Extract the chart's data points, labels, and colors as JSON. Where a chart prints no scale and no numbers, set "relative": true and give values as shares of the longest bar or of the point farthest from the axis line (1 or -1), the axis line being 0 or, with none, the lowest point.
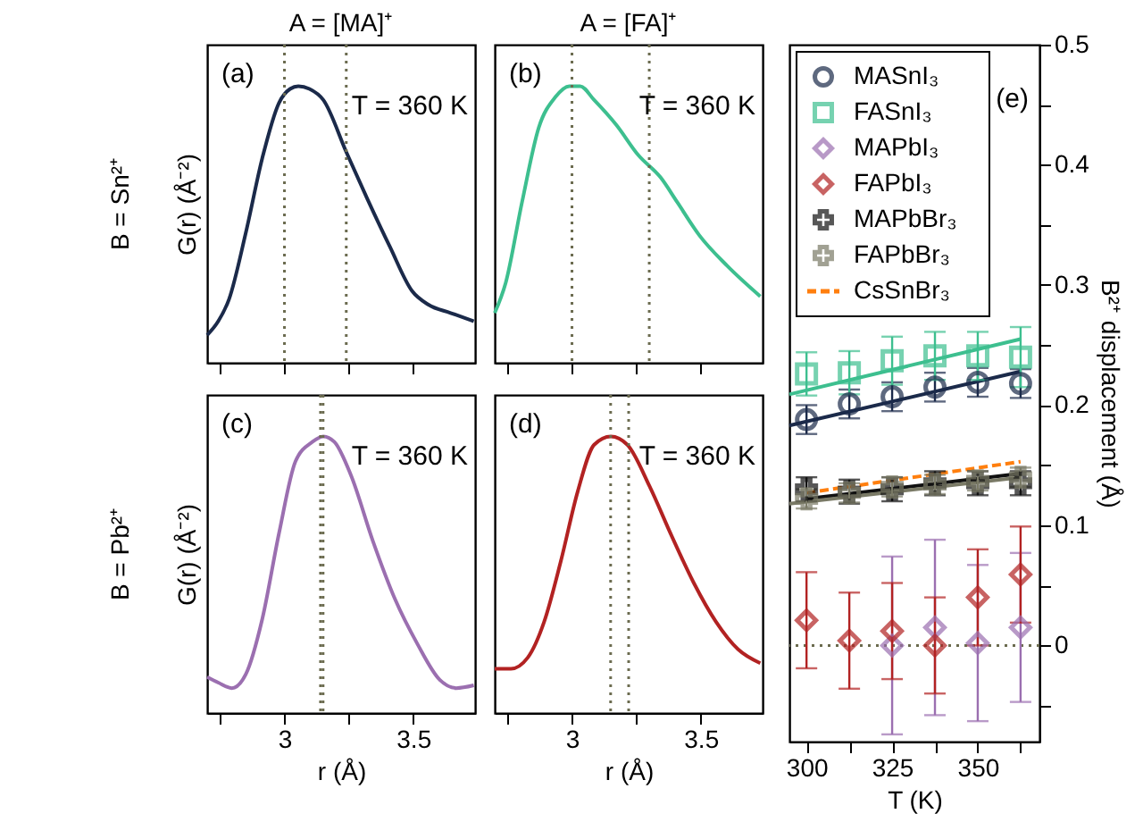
{
  "chart_data": [
    {
      "type": "line",
      "title": "A = [MA]⁺",
      "ylabel": "G(r) (Å⁻²)",
      "relative": true,
      "tick_labels": false,
      "xlim": [
        2.7,
        3.74
      ],
      "xticks": [
        {
          "value": 2.75,
          "label": null
        },
        3,
        {
          "value": 3.25,
          "label": null
        },
        3.5
      ],
      "series": [
        {
          "color": "#1b2a4a",
          "x": [
            2.7,
            2.743,
            2.785,
            2.85,
            2.914,
            2.979,
            3.022,
            3.054,
            3.097,
            3.151,
            3.241,
            3.323,
            3.409,
            3.495,
            3.559,
            3.645,
            3.735
          ],
          "values": [
            0.1,
            0.15,
            0.23,
            0.47,
            0.74,
            0.94,
            0.99,
            1.0,
            0.99,
            0.95,
            0.76,
            0.59,
            0.42,
            0.26,
            0.21,
            0.18,
            0.15
          ]
        }
      ],
      "ref_lines": [
        {
          "axis": "x",
          "value": 3.0,
          "color": "#6b6b4f",
          "line_style": "dotted"
        },
        {
          "axis": "x",
          "value": 3.24,
          "color": "#6b6b4f",
          "line_style": "dotted"
        }
      ],
      "annotations": [
        "(a)",
        "T = 360 K",
        "B = Sn²⁺"
      ]
    },
    {
      "type": "line",
      "title": "A = [FA]⁺",
      "relative": true,
      "tick_labels": false,
      "xlim": [
        2.7,
        3.74
      ],
      "xticks": [
        {
          "value": 2.75,
          "label": null
        },
        3,
        {
          "value": 3.25,
          "label": null
        },
        3.5
      ],
      "series": [
        {
          "color": "#3dbf8f",
          "x": [
            2.7,
            2.743,
            2.806,
            2.871,
            2.935,
            2.99,
            3.032,
            3.086,
            3.172,
            3.258,
            3.344,
            3.409,
            3.495,
            3.603,
            3.731
          ],
          "values": [
            0.18,
            0.29,
            0.58,
            0.85,
            0.96,
            1.0,
            1.0,
            0.95,
            0.86,
            0.75,
            0.67,
            0.58,
            0.46,
            0.35,
            0.24
          ]
        }
      ],
      "ref_lines": [
        {
          "axis": "x",
          "value": 3.0,
          "color": "#6b6b4f",
          "line_style": "dotted"
        },
        {
          "axis": "x",
          "value": 3.3,
          "color": "#6b6b4f",
          "line_style": "dotted"
        }
      ],
      "annotations": [
        "(b)",
        "T = 360 K"
      ]
    },
    {
      "type": "line",
      "xlabel": "r (Å)",
      "ylabel": "G(r) (Å⁻²)",
      "relative": true,
      "tick_labels": "x",
      "xlim": [
        2.7,
        3.74
      ],
      "xticks": [
        {
          "value": 2.75,
          "label": null
        },
        3,
        {
          "value": 3.25,
          "label": null
        },
        3.5
      ],
      "series": [
        {
          "color": "#9b6fb0",
          "x": [
            2.7,
            2.743,
            2.796,
            2.85,
            2.914,
            2.979,
            3.043,
            3.108,
            3.151,
            3.194,
            3.258,
            3.344,
            3.43,
            3.516,
            3.603,
            3.667,
            3.735
          ],
          "values": [
            0.13,
            0.11,
            0.09,
            0.14,
            0.34,
            0.65,
            0.91,
            0.98,
            1.0,
            0.98,
            0.86,
            0.62,
            0.41,
            0.25,
            0.12,
            0.09,
            0.1
          ]
        }
      ],
      "ref_lines": [
        {
          "axis": "x",
          "value": 3.14,
          "color": "#6b6b4f",
          "line_style": "dotted"
        },
        {
          "axis": "x",
          "value": 3.15,
          "color": "#6b6b4f",
          "line_style": "dotted"
        }
      ],
      "annotations": [
        "(c)",
        "T = 360 K",
        "B = Pb²⁺"
      ]
    },
    {
      "type": "line",
      "xlabel": "r (Å)",
      "relative": true,
      "tick_labels": "x",
      "xlim": [
        2.7,
        3.74
      ],
      "xticks": [
        {
          "value": 2.75,
          "label": null
        },
        3,
        {
          "value": 3.25,
          "label": null
        },
        3.5
      ],
      "series": [
        {
          "color": "#b22222",
          "x": [
            2.7,
            2.763,
            2.828,
            2.892,
            2.957,
            3.022,
            3.086,
            3.151,
            3.215,
            3.301,
            3.387,
            3.473,
            3.559,
            3.645,
            3.731
          ],
          "values": [
            0.16,
            0.16,
            0.2,
            0.33,
            0.55,
            0.8,
            0.97,
            1.0,
            0.97,
            0.82,
            0.64,
            0.47,
            0.33,
            0.23,
            0.18
          ]
        }
      ],
      "ref_lines": [
        {
          "axis": "x",
          "value": 3.15,
          "color": "#6b6b4f",
          "line_style": "dotted"
        },
        {
          "axis": "x",
          "value": 3.22,
          "color": "#6b6b4f",
          "line_style": "dotted"
        }
      ],
      "annotations": [
        "(d)",
        "T = 360 K"
      ]
    },
    {
      "type": "scatter",
      "xlabel": "T (K)",
      "ylabel": "B²⁺ displacement (Å)",
      "legend": "top left",
      "xlim": [
        295,
        368
      ],
      "xticks": [
        300,
        {
          "value": 312.5,
          "label": null
        },
        325,
        {
          "value": 337.5,
          "label": null
        },
        350,
        {
          "value": 362.5,
          "label": null
        }
      ],
      "ylim": [
        -0.08,
        0.5
      ],
      "yticks": [
        {
          "value": -0.05,
          "label": null
        },
        0,
        {
          "value": 0.05,
          "label": null
        },
        0.1,
        {
          "value": 0.15,
          "label": null
        },
        0.2,
        {
          "value": 0.25,
          "label": null
        },
        0.3,
        {
          "value": 0.35,
          "label": null
        },
        0.4,
        {
          "value": 0.45,
          "label": null
        },
        0.5
      ],
      "series": [
        {
          "type": "line",
          "color": "#1b2a4a",
          "x": [
            295,
            362.5
          ],
          "values": [
            0.183,
            0.228
          ]
        },
        {
          "type": "line",
          "color": "#3dbf8f",
          "x": [
            295,
            362.5
          ],
          "values": [
            0.209,
            0.255
          ]
        },
        {
          "type": "line",
          "color": "#111111",
          "x": [
            300,
            362.5
          ],
          "values": [
            0.122,
            0.143
          ]
        },
        {
          "type": "line",
          "color": "#7a7a66",
          "x": [
            295,
            362.5
          ],
          "values": [
            0.118,
            0.14
          ]
        },
        {
          "name": "MASnI₃",
          "marker": "circle",
          "color": "#1b2a4a",
          "x": [
            300,
            312.5,
            325,
            337.5,
            350,
            362.5
          ],
          "values": [
            0.188,
            0.201,
            0.207,
            0.215,
            0.219,
            0.218
          ],
          "errors": [
            0.012,
            0.012,
            0.012,
            0.012,
            0.012,
            0.012
          ]
        },
        {
          "name": "FASnI₃",
          "marker": "square",
          "color": "#3dbf8f",
          "x": [
            300,
            312.5,
            325,
            337.5,
            350,
            362.5
          ],
          "values": [
            0.226,
            0.227,
            0.237,
            0.241,
            0.241,
            0.24
          ],
          "errors": [
            0.018,
            0.018,
            0.02,
            0.02,
            0.02,
            0.025
          ]
        },
        {
          "name": "MAPbI₃",
          "marker": "diamond",
          "color": "#9b6fb0",
          "x": [
            325,
            337.5,
            350,
            362.5
          ],
          "values": [
            0.0,
            0.015,
            0.002,
            0.015
          ],
          "errors": [
            0.074,
            0.073,
            0.065,
            0.062
          ]
        },
        {
          "name": "FAPbI₃",
          "marker": "diamond",
          "color": "#b22222",
          "x": [
            300,
            312.5,
            325,
            337.5,
            350,
            362.5
          ],
          "values": [
            0.021,
            0.004,
            0.012,
            0.0,
            0.04,
            0.059
          ],
          "errors": [
            0.04,
            0.04,
            0.04,
            0.04,
            0.04,
            0.04
          ]
        },
        {
          "name": "MAPbBr₃",
          "marker": "cross",
          "color": "#111111",
          "x": [
            300,
            312.5,
            325,
            337.5,
            350,
            362.5
          ],
          "values": [
            0.13,
            0.128,
            0.13,
            0.135,
            0.135,
            0.135
          ],
          "errors": [
            0.01,
            0.01,
            0.01,
            0.01,
            0.01,
            0.01
          ]
        },
        {
          "name": "FAPbBr₃",
          "marker": "cross",
          "color": "#7a7a66",
          "x": [
            300,
            312.5,
            325,
            337.5,
            350,
            362.5
          ],
          "values": [
            0.122,
            0.127,
            0.132,
            0.134,
            0.137,
            0.14
          ],
          "errors": [
            0.008,
            0.008,
            0.008,
            0.008,
            0.008,
            0.008
          ]
        },
        {
          "name": "CsSnBr₃",
          "type": "line",
          "line_style": "dashed",
          "color": "#ff7f0e",
          "x": [
            300,
            362.5
          ],
          "values": [
            0.127,
            0.153
          ]
        }
      ],
      "ref_lines": [
        {
          "axis": "y",
          "value": 0,
          "color": "#6b6b4f",
          "line_style": "dotted"
        }
      ],
      "annotations": [
        "(e)"
      ]
    }
  ]
}
